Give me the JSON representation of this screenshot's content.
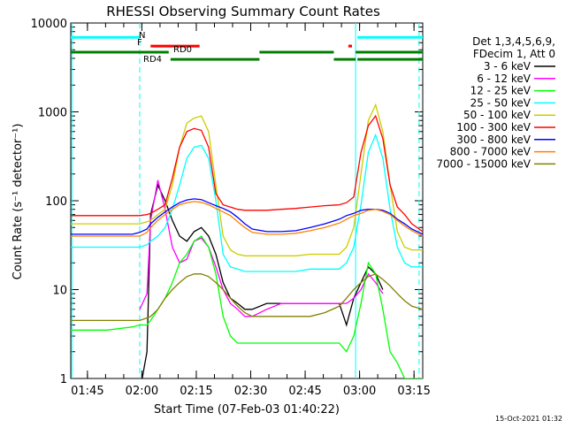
{
  "chart_data": {
    "type": "line",
    "title": "RHESSI Observing Summary Count Rates",
    "xlabel": "Start Time (07-Feb-03 01:40:22)",
    "ylabel": "Count Rate (s⁻¹ detector⁻¹)",
    "yscale": "log",
    "ylim": [
      1,
      10000
    ],
    "xlim_minutes_after_start": [
      0,
      97
    ],
    "x_tick_labels": [
      "01:45",
      "02:00",
      "02:15",
      "02:30",
      "02:45",
      "03:00",
      "03:15"
    ],
    "x_ticks_minutes_after_start": [
      4.6,
      19.6,
      34.6,
      49.6,
      64.6,
      79.6,
      94.6
    ],
    "y_tick_labels": [
      "1",
      "10",
      "100",
      "1000",
      "10000"
    ],
    "y_ticks": [
      1,
      10,
      100,
      1000,
      10000
    ],
    "grid": false,
    "legend_position": "right",
    "legend_header": [
      "Det 1,3,4,5,6,9,",
      "FDecim 1, Att 0"
    ],
    "x_minutes_after_start": [
      0,
      10,
      17,
      19,
      21,
      22,
      24,
      26,
      28,
      30,
      32,
      34,
      36,
      38,
      40,
      42,
      44,
      46,
      48,
      50,
      54,
      58,
      62,
      66,
      70,
      74,
      76,
      78,
      80,
      82,
      84,
      86,
      88,
      90,
      92,
      94,
      97
    ],
    "series": [
      {
        "name": "3 - 6 keV",
        "color": "#000000",
        "values": [
          null,
          null,
          null,
          0.7,
          2,
          70,
          150,
          100,
          60,
          40,
          35,
          45,
          50,
          40,
          25,
          12,
          8,
          7,
          6,
          6,
          7,
          7,
          7,
          7,
          7,
          7,
          4,
          8,
          12,
          18,
          15,
          10,
          null,
          null,
          null,
          null,
          null
        ]
      },
      {
        "name": "6 - 12 keV",
        "color": "#ff00ff",
        "values": [
          null,
          null,
          null,
          6,
          9,
          60,
          170,
          80,
          30,
          20,
          22,
          35,
          38,
          30,
          18,
          10,
          7,
          6,
          5,
          5,
          6,
          7,
          7,
          7,
          7,
          7,
          7,
          8,
          10,
          15,
          12,
          9,
          null,
          null,
          null,
          null,
          null
        ]
      },
      {
        "name": "12 - 25 keV",
        "color": "#00ff00",
        "values": [
          3.5,
          3.5,
          3.8,
          4,
          4,
          4.5,
          6,
          8,
          12,
          20,
          25,
          35,
          40,
          30,
          15,
          5,
          3,
          2.5,
          2.5,
          2.5,
          2.5,
          2.5,
          2.5,
          2.5,
          2.5,
          2.5,
          2,
          3,
          7,
          20,
          15,
          6,
          2,
          1.5,
          1,
          1,
          1
        ]
      },
      {
        "name": "25 - 50 keV",
        "color": "#00ffff",
        "values": [
          30,
          30,
          30,
          30,
          32,
          35,
          40,
          50,
          80,
          150,
          300,
          400,
          420,
          300,
          100,
          25,
          18,
          17,
          16,
          16,
          16,
          16,
          16,
          17,
          17,
          17,
          20,
          30,
          90,
          350,
          550,
          300,
          80,
          30,
          20,
          18,
          18
        ]
      },
      {
        "name": "50 - 100 keV",
        "color": "#cccc00",
        "values": [
          55,
          55,
          55,
          55,
          58,
          60,
          70,
          80,
          150,
          400,
          750,
          850,
          900,
          600,
          150,
          40,
          28,
          25,
          24,
          24,
          24,
          24,
          24,
          25,
          25,
          25,
          30,
          50,
          200,
          800,
          1200,
          600,
          150,
          45,
          30,
          28,
          28
        ]
      },
      {
        "name": "100 - 300 keV",
        "color": "#ff0000",
        "values": [
          68,
          68,
          68,
          68,
          70,
          72,
          80,
          90,
          180,
          400,
          600,
          650,
          620,
          400,
          120,
          90,
          85,
          80,
          78,
          78,
          78,
          80,
          82,
          85,
          88,
          90,
          95,
          110,
          350,
          700,
          900,
          500,
          150,
          85,
          70,
          55,
          45
        ]
      },
      {
        "name": "300 - 800 keV",
        "color": "#0000ff",
        "values": [
          42,
          42,
          42,
          44,
          48,
          55,
          65,
          75,
          85,
          95,
          102,
          105,
          103,
          95,
          88,
          82,
          75,
          65,
          55,
          48,
          45,
          45,
          46,
          50,
          55,
          62,
          68,
          72,
          78,
          80,
          80,
          78,
          72,
          62,
          55,
          48,
          42
        ]
      },
      {
        "name": "800 - 7000 keV",
        "color": "#ff8000",
        "values": [
          40,
          40,
          40,
          40,
          44,
          50,
          60,
          70,
          80,
          90,
          95,
          98,
          96,
          90,
          82,
          75,
          68,
          58,
          50,
          44,
          42,
          42,
          43,
          46,
          50,
          56,
          62,
          68,
          72,
          78,
          80,
          76,
          70,
          60,
          52,
          46,
          40
        ]
      },
      {
        "name": "7000 - 15000 keV",
        "color": "#808000",
        "values": [
          4.5,
          4.5,
          4.5,
          4.5,
          4.8,
          5,
          6,
          8,
          10,
          12,
          14,
          15,
          15,
          14,
          12,
          10,
          8,
          6.5,
          5.5,
          5,
          5,
          5,
          5,
          5,
          5.5,
          6.5,
          8,
          10,
          12,
          14,
          15,
          13,
          11,
          9,
          7.5,
          6.5,
          6
        ]
      }
    ],
    "vertical_markers_minutes": [
      {
        "x": 0.3,
        "color": "#00ffff",
        "dashed": false
      },
      {
        "x": 19.0,
        "color": "#00ffff",
        "dashed": true
      },
      {
        "x": 78.5,
        "color": "#00ffff",
        "dashed": false
      },
      {
        "x": 96.0,
        "color": "#00ffff",
        "dashed": true
      }
    ],
    "status_bars": [
      {
        "label": "N",
        "color": "#00ffff",
        "y": 6900,
        "segments": [
          [
            0,
            19
          ],
          [
            79,
            97
          ]
        ]
      },
      {
        "label": "F",
        "color": "#ff0000",
        "y": 5500,
        "segments": [
          [
            22,
            35.5
          ],
          [
            76.5,
            77.5
          ]
        ]
      },
      {
        "label": "RD0",
        "color": "#008000",
        "y": 4700,
        "segments": [
          [
            0,
            27
          ],
          [
            52,
            72.5
          ],
          [
            78.5,
            97
          ]
        ]
      },
      {
        "label": "RD4",
        "color": "#008000",
        "y": 3900,
        "segments": [
          [
            27.5,
            52
          ],
          [
            72.5,
            78.5
          ],
          [
            79,
            97
          ]
        ]
      }
    ],
    "footer_date": "15-Oct-2021 01:32"
  }
}
